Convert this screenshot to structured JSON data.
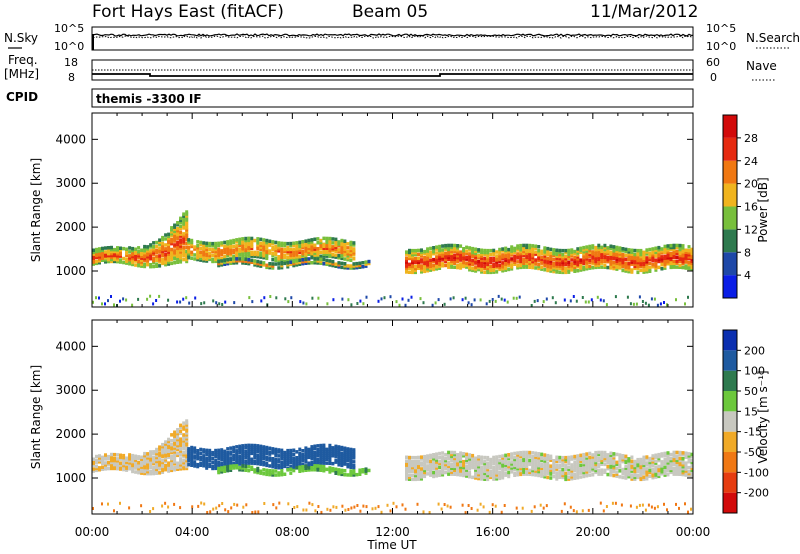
{
  "header": {
    "station": "Fort Hays East (fitACF)",
    "beam": "Beam 05",
    "date": "11/Mar/2012"
  },
  "info_panels": {
    "nsky_label": "N.Sky",
    "nsearch_label": "N.Search",
    "freq_label_top": "Freq.",
    "freq_label_bottom": "[MHz]",
    "nave_label": "Nave",
    "cpid_label": "CPID",
    "cpid_value": "themis -3300 IF",
    "noise_ticks_left": [
      "10^5",
      "10^0"
    ],
    "noise_ticks_right": [
      "10^5",
      "10^0"
    ],
    "freq_ticks": [
      "18",
      "8"
    ],
    "nave_ticks": [
      "60",
      "0"
    ]
  },
  "colorbars": {
    "power": {
      "title": "Power [dB]",
      "labels": [
        "4",
        "8",
        "12",
        "16",
        "20",
        "24",
        "28"
      ],
      "colors": [
        "#0a1ee6",
        "#1e48a8",
        "#2e7a4e",
        "#78bf3c",
        "#f0b41e",
        "#f07812",
        "#e62a10",
        "#d20a0a"
      ]
    },
    "velocity": {
      "title": "Velocity [m s⁻¹]",
      "labels": [
        "200",
        "100",
        "50",
        "15",
        "-15",
        "-50",
        "-100",
        "-200"
      ],
      "colors": [
        "#0b2fb0",
        "#1e5aa0",
        "#2e7a4e",
        "#6cc83c",
        "#c8c8c0",
        "#f0aa28",
        "#f07814",
        "#e63c10",
        "#d20a0a"
      ]
    }
  },
  "chart_data": {
    "type": "heatmap",
    "xlabel": "Time UT",
    "ylabel": "Slant Range [km]",
    "xlim": [
      0,
      24
    ],
    "ylim": [
      180,
      4600
    ],
    "x_ticks": [
      "00:00",
      "04:00",
      "08:00",
      "12:00",
      "16:00",
      "20:00",
      "00:00"
    ],
    "y_ticks": [
      "1000",
      "2000",
      "3000",
      "4000"
    ],
    "scatter_bands": [
      {
        "t_start": 0.0,
        "t_end": 3.8,
        "range_start": 1130,
        "range_end": 1450,
        "range_end_late": 2350,
        "power_db": 24,
        "velocity": -10
      },
      {
        "t_start": 3.8,
        "t_end": 10.4,
        "range_start": 1250,
        "range_end": 1700,
        "power_db": 22,
        "velocity": 120
      },
      {
        "t_start": 5.0,
        "t_end": 11.0,
        "range_start": 1100,
        "range_end": 1200,
        "power_db": 18,
        "velocity": 40
      },
      {
        "t_start": 12.5,
        "t_end": 24.0,
        "range_start": 1000,
        "range_end": 1500,
        "power_db": 26,
        "velocity": 0
      }
    ],
    "ground_scatter_range": [
      200,
      420
    ]
  }
}
